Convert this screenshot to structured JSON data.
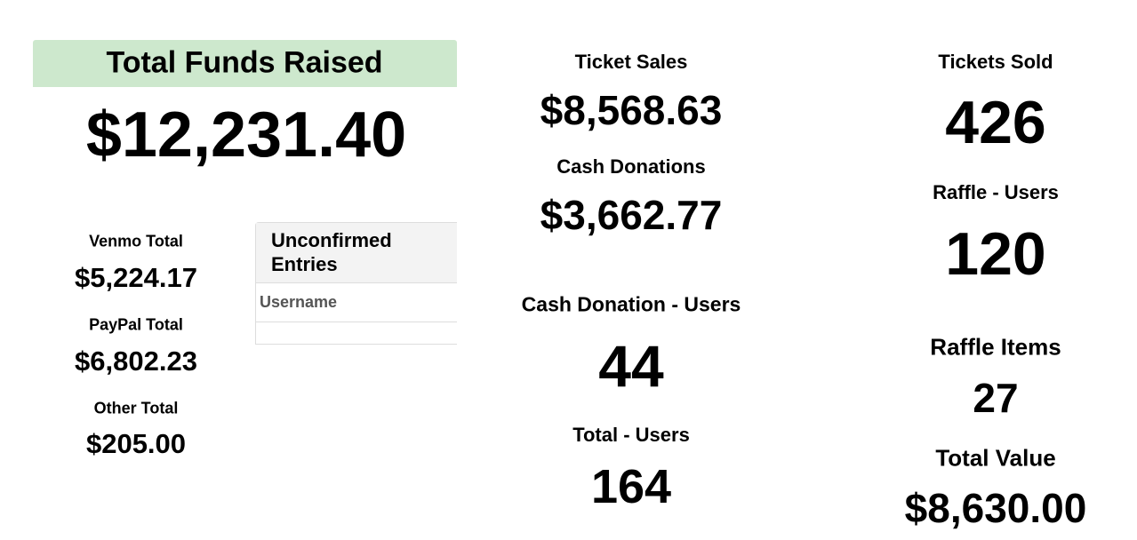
{
  "total_funds": {
    "label": "Total Funds Raised",
    "value": "$12,231.40"
  },
  "payment_totals": [
    {
      "label": "Venmo Total",
      "value": "$5,224.17"
    },
    {
      "label": "PayPal Total",
      "value": "$6,802.23"
    },
    {
      "label": "Other Total",
      "value": "$205.00"
    }
  ],
  "unconfirmed_entries": {
    "title": "Unconfirmed Entries",
    "columns": [
      "Username"
    ]
  },
  "middle_stats": [
    {
      "label": "Ticket Sales",
      "value": "$8,568.63"
    },
    {
      "label": "Cash Donations",
      "value": "$3,662.77"
    },
    {
      "label": "Cash Donation - Users",
      "value": "44"
    },
    {
      "label": "Total - Users",
      "value": "164"
    }
  ],
  "right_stats": [
    {
      "label": "Tickets Sold",
      "value": "426"
    },
    {
      "label": "Raffle - Users",
      "value": "120"
    },
    {
      "label": "Raffle Items",
      "value": "27"
    },
    {
      "label": "Total Value",
      "value": "$8,630.00"
    }
  ]
}
